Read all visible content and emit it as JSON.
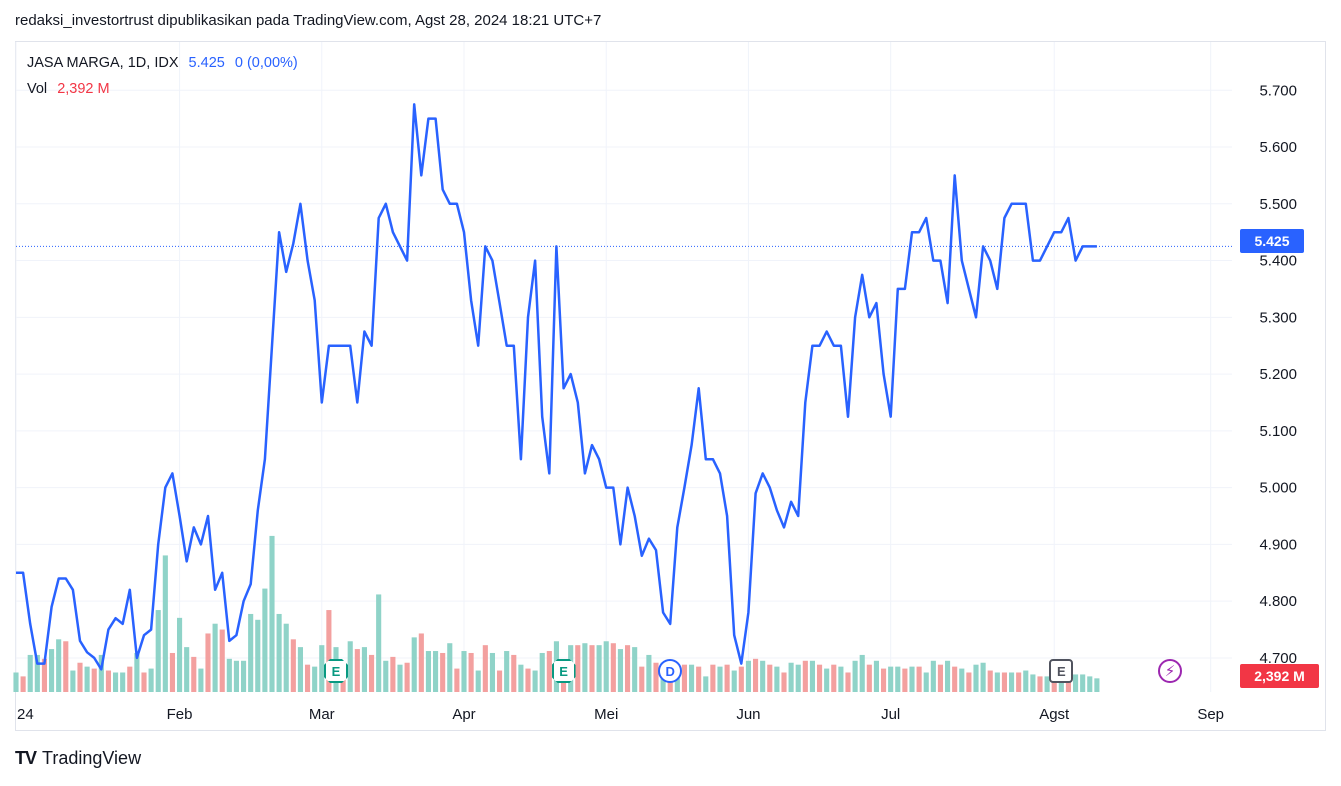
{
  "header": {
    "caption": "redaksi_investortrust dipublikasikan pada TradingView.com, Agst 28, 2024 18:21 UTC+7"
  },
  "legend": {
    "symbol": "JASA MARGA, 1D, IDX",
    "price": "5.425",
    "change": "0 (0,00%)",
    "vol_label": "Vol",
    "vol_value": "2,392 M"
  },
  "badges": {
    "last_price": "5.425",
    "last_volume": "2,392 M"
  },
  "events": [
    {
      "type": "earnings",
      "label": "E",
      "date_index": 45
    },
    {
      "type": "earnings",
      "label": "E",
      "date_index": 77
    },
    {
      "type": "dividend",
      "label": "D",
      "date_index": 92
    },
    {
      "type": "earnings-upcoming",
      "label": "E",
      "date_index": 147
    },
    {
      "type": "split",
      "label": "⚡",
      "date_index": 166
    }
  ],
  "brand": {
    "name": "TradingView",
    "logo": "TV"
  },
  "colors": {
    "line": "#2962ff",
    "vol_up": "#8fd3c8",
    "vol_down": "#f3a09f",
    "grid": "#f0f3fa",
    "last_price_line": "#2962ff"
  },
  "chart_data": {
    "type": "line",
    "title": "JASA MARGA, 1D, IDX",
    "y_axis_side": "right",
    "ylim": [
      4.64,
      5.785
    ],
    "y_ticks": [
      4.7,
      4.8,
      4.9,
      5.0,
      5.1,
      5.2,
      5.3,
      5.4,
      5.5,
      5.6,
      5.7
    ],
    "y_tick_labels": [
      "4.700",
      "4.800",
      "4.900",
      "5.000",
      "5.100",
      "5.200",
      "5.300",
      "5.400",
      "5.500",
      "5.600",
      "5.700"
    ],
    "x_ticks": [
      {
        "label": "24",
        "index": 0
      },
      {
        "label": "Feb",
        "index": 23
      },
      {
        "label": "Mar",
        "index": 43
      },
      {
        "label": "Apr",
        "index": 63
      },
      {
        "label": "Mei",
        "index": 83
      },
      {
        "label": "Jun",
        "index": 103
      },
      {
        "label": "Jul",
        "index": 123
      },
      {
        "label": "Agst",
        "index": 146
      },
      {
        "label": "Sep",
        "index": 168
      }
    ],
    "grid": true,
    "last_price": 5.425,
    "x_count": 172,
    "series": [
      {
        "name": "JASA MARGA",
        "values": [
          4.85,
          4.85,
          4.76,
          4.69,
          4.69,
          4.79,
          4.84,
          4.84,
          4.82,
          4.73,
          4.71,
          4.7,
          4.68,
          4.75,
          4.77,
          4.76,
          4.82,
          4.7,
          4.74,
          4.75,
          4.9,
          5.0,
          5.025,
          4.95,
          4.87,
          4.93,
          4.9,
          4.95,
          4.82,
          4.85,
          4.73,
          4.74,
          4.8,
          4.83,
          4.96,
          5.05,
          5.25,
          5.45,
          5.38,
          5.43,
          5.5,
          5.4,
          5.33,
          5.15,
          5.25,
          5.25,
          5.25,
          5.25,
          5.15,
          5.275,
          5.25,
          5.475,
          5.5,
          5.45,
          5.425,
          5.4,
          5.675,
          5.55,
          5.65,
          5.65,
          5.525,
          5.5,
          5.5,
          5.45,
          5.33,
          5.25,
          5.425,
          5.4,
          5.325,
          5.25,
          5.25,
          5.05,
          5.3,
          5.4,
          5.125,
          5.025,
          5.425,
          5.175,
          5.2,
          5.15,
          5.025,
          5.075,
          5.05,
          5.0,
          5.0,
          4.9,
          5.0,
          4.95,
          4.88,
          4.91,
          4.89,
          4.78,
          4.76,
          4.93,
          5.0,
          5.075,
          5.175,
          5.05,
          5.05,
          5.025,
          4.95,
          4.74,
          4.69,
          4.78,
          4.99,
          5.025,
          5.0,
          4.96,
          4.93,
          4.975,
          4.95,
          5.15,
          5.25,
          5.25,
          5.275,
          5.25,
          5.25,
          5.125,
          5.3,
          5.375,
          5.3,
          5.325,
          5.2,
          5.125,
          5.35,
          5.35,
          5.45,
          5.45,
          5.475,
          5.4,
          5.4,
          5.325,
          5.55,
          5.4,
          5.35,
          5.3,
          5.425,
          5.4,
          5.35,
          5.475,
          5.5,
          5.5,
          5.5,
          5.4,
          5.4,
          5.425,
          5.45,
          5.45,
          5.475,
          5.4,
          5.425,
          5.425,
          5.425
        ]
      }
    ],
    "volume": {
      "name": "Vol",
      "values": [
        1.0,
        0.8,
        1.9,
        1.9,
        1.7,
        2.2,
        2.7,
        2.6,
        1.1,
        1.5,
        1.3,
        1.2,
        1.9,
        1.1,
        1.0,
        1.0,
        1.3,
        2.0,
        1.0,
        1.2,
        4.2,
        7.0,
        2.0,
        3.8,
        2.3,
        1.8,
        1.2,
        3.0,
        3.5,
        3.2,
        1.7,
        1.6,
        1.6,
        4.0,
        3.7,
        5.3,
        8.0,
        4.0,
        3.5,
        2.7,
        2.3,
        1.4,
        1.3,
        2.4,
        4.2,
        2.3,
        1.4,
        2.6,
        2.2,
        2.3,
        1.9,
        5.0,
        1.6,
        1.8,
        1.4,
        1.5,
        2.8,
        3.0,
        2.1,
        2.1,
        2.0,
        2.5,
        1.2,
        2.1,
        2.0,
        1.1,
        2.4,
        2.0,
        1.1,
        2.1,
        1.9,
        1.4,
        1.2,
        1.1,
        2.0,
        2.1,
        2.6,
        1.4,
        2.4,
        2.4,
        2.5,
        2.4,
        2.4,
        2.6,
        2.5,
        2.2,
        2.4,
        2.3,
        1.3,
        1.9,
        1.5,
        1.5,
        1.4,
        1.2,
        1.4,
        1.4,
        1.3,
        0.8,
        1.4,
        1.3,
        1.4,
        1.1,
        1.3,
        1.6,
        1.7,
        1.6,
        1.4,
        1.3,
        1.0,
        1.5,
        1.4,
        1.6,
        1.6,
        1.4,
        1.2,
        1.4,
        1.3,
        1.0,
        1.6,
        1.9,
        1.4,
        1.6,
        1.2,
        1.3,
        1.3,
        1.2,
        1.3,
        1.3,
        1.0,
        1.6,
        1.4,
        1.6,
        1.3,
        1.2,
        1.0,
        1.4,
        1.5,
        1.1,
        1.0,
        1.0,
        1.0,
        1.0,
        1.1,
        0.9,
        0.8,
        0.8,
        0.9,
        1.0,
        0.7,
        0.9,
        0.9,
        0.8,
        0.7
      ],
      "up": [
        true,
        false,
        true,
        true,
        false,
        true,
        true,
        false,
        true,
        false,
        true,
        false,
        true,
        false,
        true,
        true,
        false,
        true,
        false,
        true,
        true,
        true,
        false,
        true,
        true,
        false,
        true,
        false,
        true,
        false,
        true,
        true,
        true,
        true,
        true,
        true,
        true,
        true,
        true,
        false,
        true,
        false,
        true,
        true,
        false,
        true,
        false,
        true,
        false,
        true,
        false,
        true,
        true,
        false,
        true,
        false,
        true,
        false,
        true,
        true,
        false,
        true,
        false,
        true,
        false,
        true,
        false,
        true,
        false,
        true,
        false,
        true,
        false,
        true,
        true,
        false,
        true,
        false,
        true,
        false,
        true,
        false,
        true,
        true,
        false,
        true,
        false,
        true,
        false,
        true,
        false,
        true,
        false,
        true,
        false,
        true,
        false,
        true,
        false,
        true,
        false,
        true,
        false,
        true,
        false,
        true,
        false,
        true,
        false,
        true,
        true,
        false,
        true,
        false,
        true,
        false,
        true,
        false,
        true,
        true,
        false,
        true,
        false,
        true,
        true,
        false,
        true,
        false,
        true,
        true,
        false,
        true,
        false,
        true,
        false,
        true,
        true,
        false,
        true,
        false,
        true,
        false,
        true,
        true,
        false,
        true,
        false,
        true,
        false,
        true,
        true,
        true,
        true
      ]
    }
  }
}
